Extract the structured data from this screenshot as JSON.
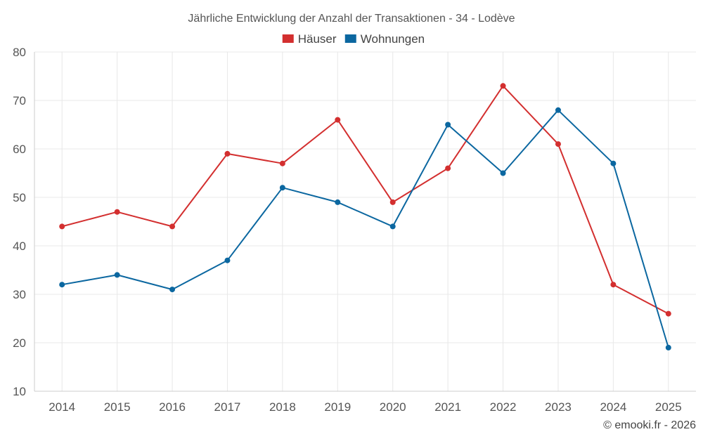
{
  "chart_data": {
    "type": "line",
    "title": "Jährliche Entwicklung der Anzahl der Transaktionen - 34 - Lodève",
    "categories": [
      "2014",
      "2015",
      "2016",
      "2017",
      "2018",
      "2019",
      "2020",
      "2021",
      "2022",
      "2023",
      "2024",
      "2025"
    ],
    "series": [
      {
        "name": "Häuser",
        "color": "#d32f2f",
        "values": [
          44,
          47,
          44,
          59,
          57,
          66,
          49,
          56,
          73,
          61,
          32,
          26
        ]
      },
      {
        "name": "Wohnungen",
        "color": "#0b67a0",
        "values": [
          32,
          34,
          31,
          37,
          52,
          49,
          44,
          65,
          55,
          68,
          57,
          19
        ]
      }
    ],
    "ylim": [
      10,
      80
    ],
    "yticks": [
      10,
      20,
      30,
      40,
      50,
      60,
      70,
      80
    ],
    "grid": true,
    "legend": "top-center",
    "xlabel": "",
    "ylabel": ""
  },
  "credit": "© emooki.fr - 2026"
}
